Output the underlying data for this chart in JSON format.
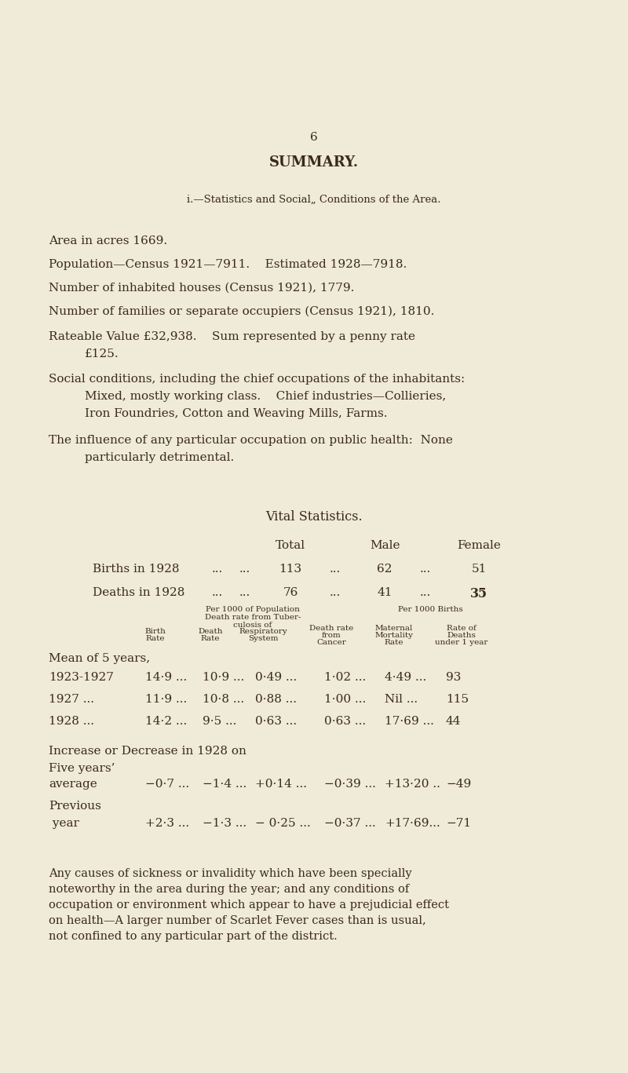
{
  "bg_color": "#f0ead8",
  "text_color": "#3a2a1a",
  "page_number": "6",
  "title": "SUMMARY.",
  "section_heading": "i.—Statistics and Social„ Conditions of the Area.",
  "body_lines": [
    [
      "Area in acres 1669.",
      false
    ],
    [
      "Population—Census 1921—7911.    Estimated 1928—7918.",
      false
    ],
    [
      "Number of inhabited houses (Census 1921), 1779.",
      false
    ],
    [
      "Number of families or separate occupiers (Census 1921), 1810.",
      false
    ],
    [
      "Rateable Value £32,938.    Sum represented by a penny rate",
      false
    ],
    [
      "£125.",
      true
    ],
    [
      "Social conditions, including the chief occupations of the inhabitants:",
      false
    ],
    [
      "Mixed, mostly working class.    Chief industries—Collieries,",
      true
    ],
    [
      "Iron Foundries, Cotton and Weaving Mills, Farms.",
      true
    ],
    [
      "The influence of any particular occupation on public health:  None",
      false
    ],
    [
      "particularly detrimental.",
      true
    ]
  ],
  "vital_stats_title": "Vital Statistics.",
  "total_label": "Total",
  "male_label": "Male",
  "female_label": "Female",
  "births_label": "Births in 1928",
  "births_dots1": "...",
  "births_dots2": "...",
  "births_total": "113",
  "births_dots3": "...",
  "births_male": "62",
  "births_dots4": "...",
  "births_female": "51",
  "deaths_label": "Deaths in 1928",
  "deaths_dots1": "...",
  "deaths_dots2": "...",
  "deaths_total": "76",
  "deaths_dots3": "...",
  "deaths_male": "41",
  "deaths_dots4": "...",
  "deaths_female": "35",
  "hdr_pop1": "Per 1000 of Population",
  "hdr_pop2": "Death rate from Tuber-",
  "hdr_pop3": "culosis of",
  "hdr_births": "Per 1000 Births",
  "col_birth_rate": "Birth\nRate",
  "col_death_rate": "Death\nRate",
  "col_resp": "Respiratory\nSystem",
  "col_cancer1": "Death rate",
  "col_cancer2": "from",
  "col_cancer3": "Cancer",
  "col_maternal1": "Maternal",
  "col_maternal2": "Mortality",
  "col_maternal3": "Rate",
  "col_ratedeath1": "Rate of",
  "col_ratedeath2": "Deaths",
  "col_ratedeath3": "under 1 year",
  "mean_label": "Mean of 5 years,",
  "table_rows": [
    [
      "1923-1927",
      "14·9 ...",
      "10·9 ...",
      "0·49 ...",
      "1·02 ...",
      "4·49 ...",
      "93"
    ],
    [
      "1927 ...",
      "11·9 ...",
      "10·8 ...",
      "0·88 ...",
      "1·00 ...",
      "Nil ...",
      "115"
    ],
    [
      "1928 ...",
      "14·2 ...",
      "9·5 ...",
      "0·63 ...",
      "0·63 ...",
      "17·69 ...",
      "44"
    ]
  ],
  "inc_line1": "Increase or Decrease in 1928 on",
  "inc_line2": "Five years’",
  "avg_label": "average",
  "avg_vals": [
    "−0·7 ...",
    "−1·4 ...",
    "+0·14 ...",
    "−0·39 ...",
    "+13·20 ..",
    "−49"
  ],
  "prev_label": "Previous",
  "year_label": " year",
  "prev_vals": [
    "+2·3 ...",
    "−1·3 ...",
    "− 0·25 ...",
    "−0·37 ...",
    "+17·69...",
    "−71"
  ],
  "final_lines": [
    "Any causes of sickness or invalidity which have been specially",
    "noteworthy in the area during the year; and any conditions of",
    "occupation or environment which appear to have a prejudicial effect",
    "on health—A larger number of Scarlet Fever cases than is usual,",
    "not confined to any particular part of the district."
  ]
}
